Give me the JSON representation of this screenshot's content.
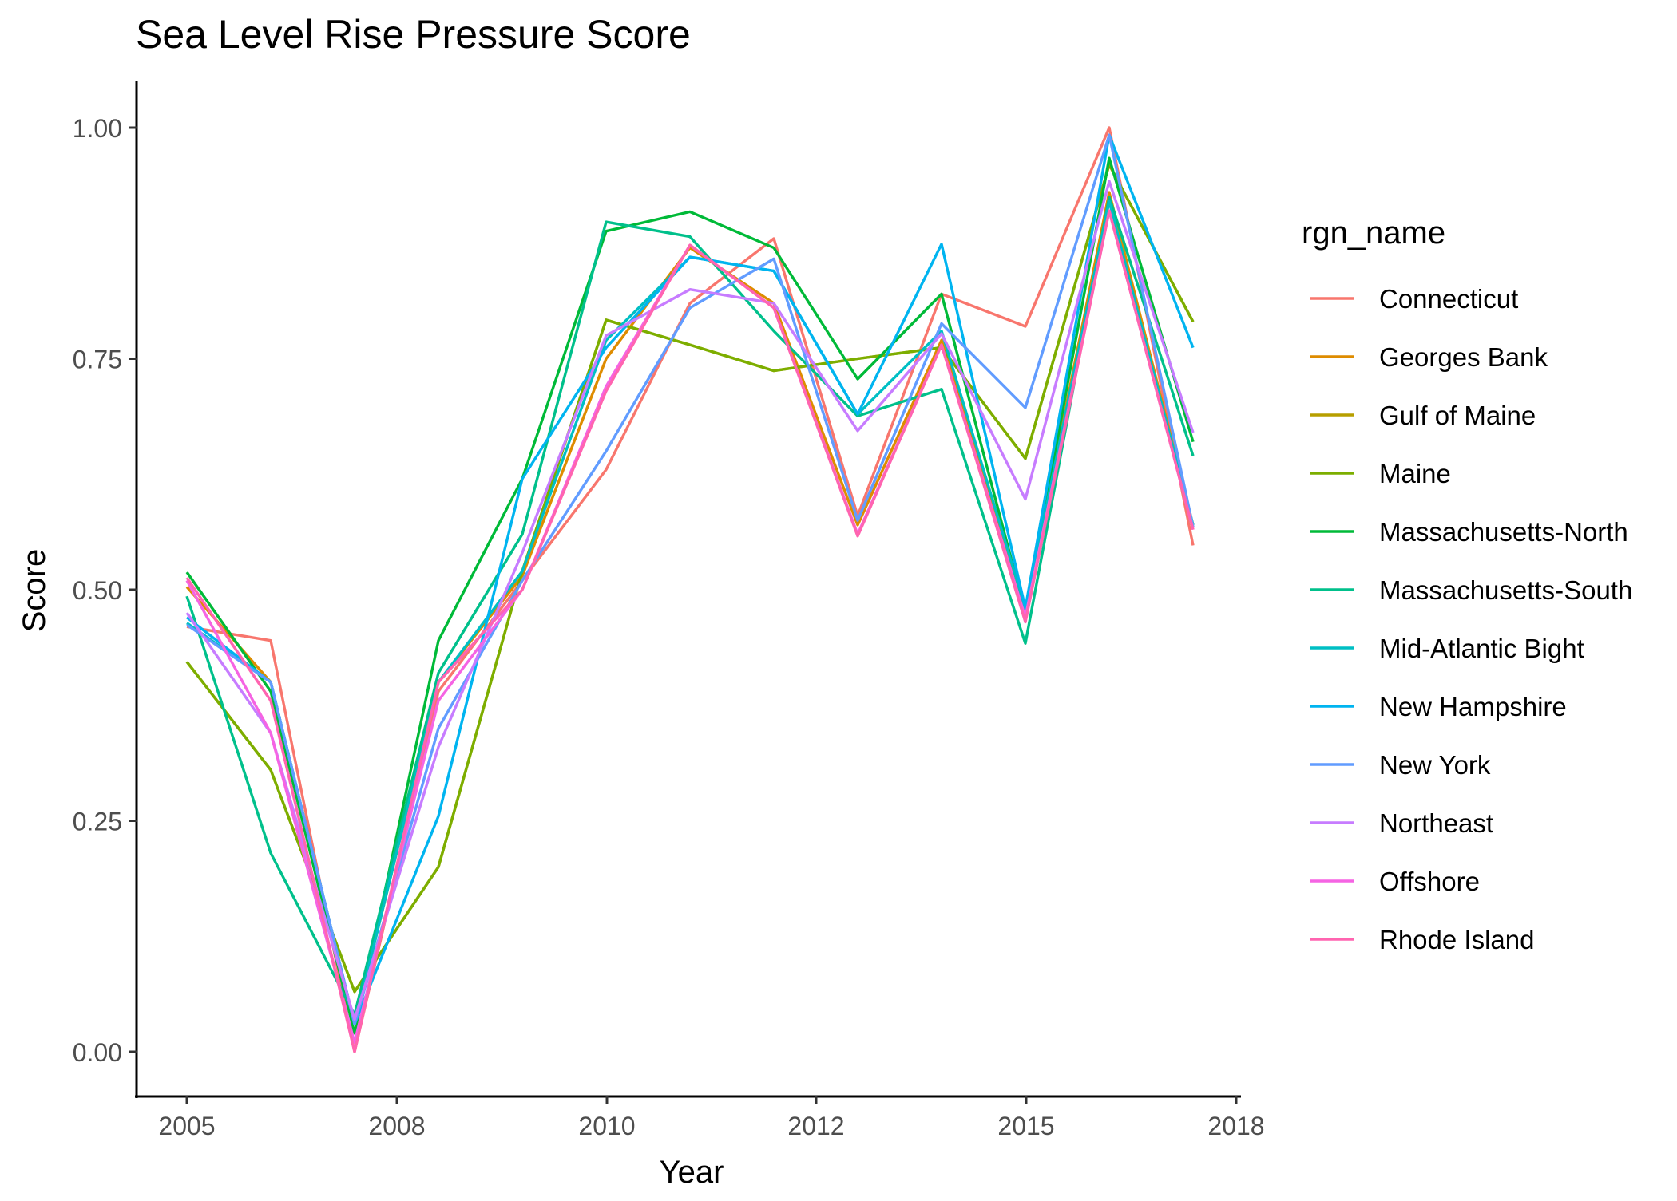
{
  "chart_data": {
    "type": "line",
    "title": "Sea Level Rise Pressure Score",
    "xlabel": "Year",
    "ylabel": "Score",
    "x_ticks": [
      "2005",
      "2008",
      "2010",
      "2012",
      "2015",
      "2018"
    ],
    "y_ticks": [
      "0.00",
      "0.25",
      "0.50",
      "0.75",
      "1.00"
    ],
    "ylim": [
      -0.05,
      1.05
    ],
    "grid": false,
    "legend_title": "rgn_name",
    "legend_position": "right",
    "x": [
      "2005",
      "2006",
      "2007",
      "2008",
      "2009",
      "2010",
      "2011",
      "2012",
      "2013",
      "2014",
      "2015",
      "2016",
      "2017"
    ],
    "series": [
      {
        "name": "Connecticut",
        "color": "#F8766D",
        "values": [
          0.46,
          0.445,
          0.0,
          0.39,
          0.51,
          0.63,
          0.81,
          0.88,
          0.58,
          0.82,
          0.785,
          1.0,
          0.548
        ]
      },
      {
        "name": "Georges Bank",
        "color": "#DE8C00",
        "values": [
          0.503,
          0.4,
          0.03,
          0.4,
          0.515,
          0.75,
          0.87,
          0.81,
          0.57,
          0.77,
          0.48,
          0.93,
          0.57
        ]
      },
      {
        "name": "Gulf of Maine",
        "color": "#B79F00",
        "values": [
          0.422,
          0.305,
          0.065,
          0.2,
          0.52,
          0.792,
          0.765,
          0.737,
          0.75,
          0.762,
          0.642,
          0.96,
          0.79
        ]
      },
      {
        "name": "Maine",
        "color": "#7CAE00",
        "values": [
          0.422,
          0.305,
          0.065,
          0.2,
          0.52,
          0.792,
          0.765,
          0.737,
          0.75,
          0.762,
          0.642,
          0.96,
          0.79
        ]
      },
      {
        "name": "Massachusetts-North",
        "color": "#00BA38",
        "values": [
          0.519,
          0.39,
          0.02,
          0.445,
          0.62,
          0.888,
          0.909,
          0.87,
          0.728,
          0.82,
          0.475,
          0.967,
          0.66
        ]
      },
      {
        "name": "Massachusetts-South",
        "color": "#00C08B",
        "values": [
          0.493,
          0.215,
          0.04,
          0.41,
          0.56,
          0.898,
          0.882,
          0.78,
          0.688,
          0.717,
          0.442,
          0.925,
          0.645
        ]
      },
      {
        "name": "Mid-Atlantic Bight",
        "color": "#00BFC4",
        "values": [
          0.464,
          0.4,
          0.03,
          0.4,
          0.52,
          0.77,
          0.86,
          0.845,
          0.69,
          0.78,
          0.48,
          0.92,
          0.57
        ]
      },
      {
        "name": "New Hampshire",
        "color": "#00B4F0",
        "values": [
          0.47,
          0.4,
          0.03,
          0.255,
          0.62,
          0.762,
          0.86,
          0.845,
          0.69,
          0.874,
          0.48,
          0.992,
          0.762
        ]
      },
      {
        "name": "New York",
        "color": "#619CFF",
        "values": [
          0.462,
          0.4,
          0.03,
          0.35,
          0.51,
          0.65,
          0.805,
          0.858,
          0.575,
          0.788,
          0.697,
          0.992,
          0.568
        ]
      },
      {
        "name": "Northeast",
        "color": "#C77CFF",
        "values": [
          0.475,
          0.345,
          0.035,
          0.33,
          0.54,
          0.775,
          0.825,
          0.81,
          0.672,
          0.777,
          0.598,
          0.942,
          0.67
        ]
      },
      {
        "name": "Offshore",
        "color": "#F564E3",
        "values": [
          0.51,
          0.345,
          0.01,
          0.38,
          0.5,
          0.72,
          0.873,
          0.805,
          0.56,
          0.765,
          0.47,
          0.91,
          0.565
        ]
      },
      {
        "name": "Rhode Island",
        "color": "#FF64B0",
        "values": [
          0.513,
          0.38,
          0.0,
          0.4,
          0.5,
          0.715,
          0.873,
          0.805,
          0.558,
          0.765,
          0.465,
          0.91,
          0.565
        ]
      }
    ]
  }
}
